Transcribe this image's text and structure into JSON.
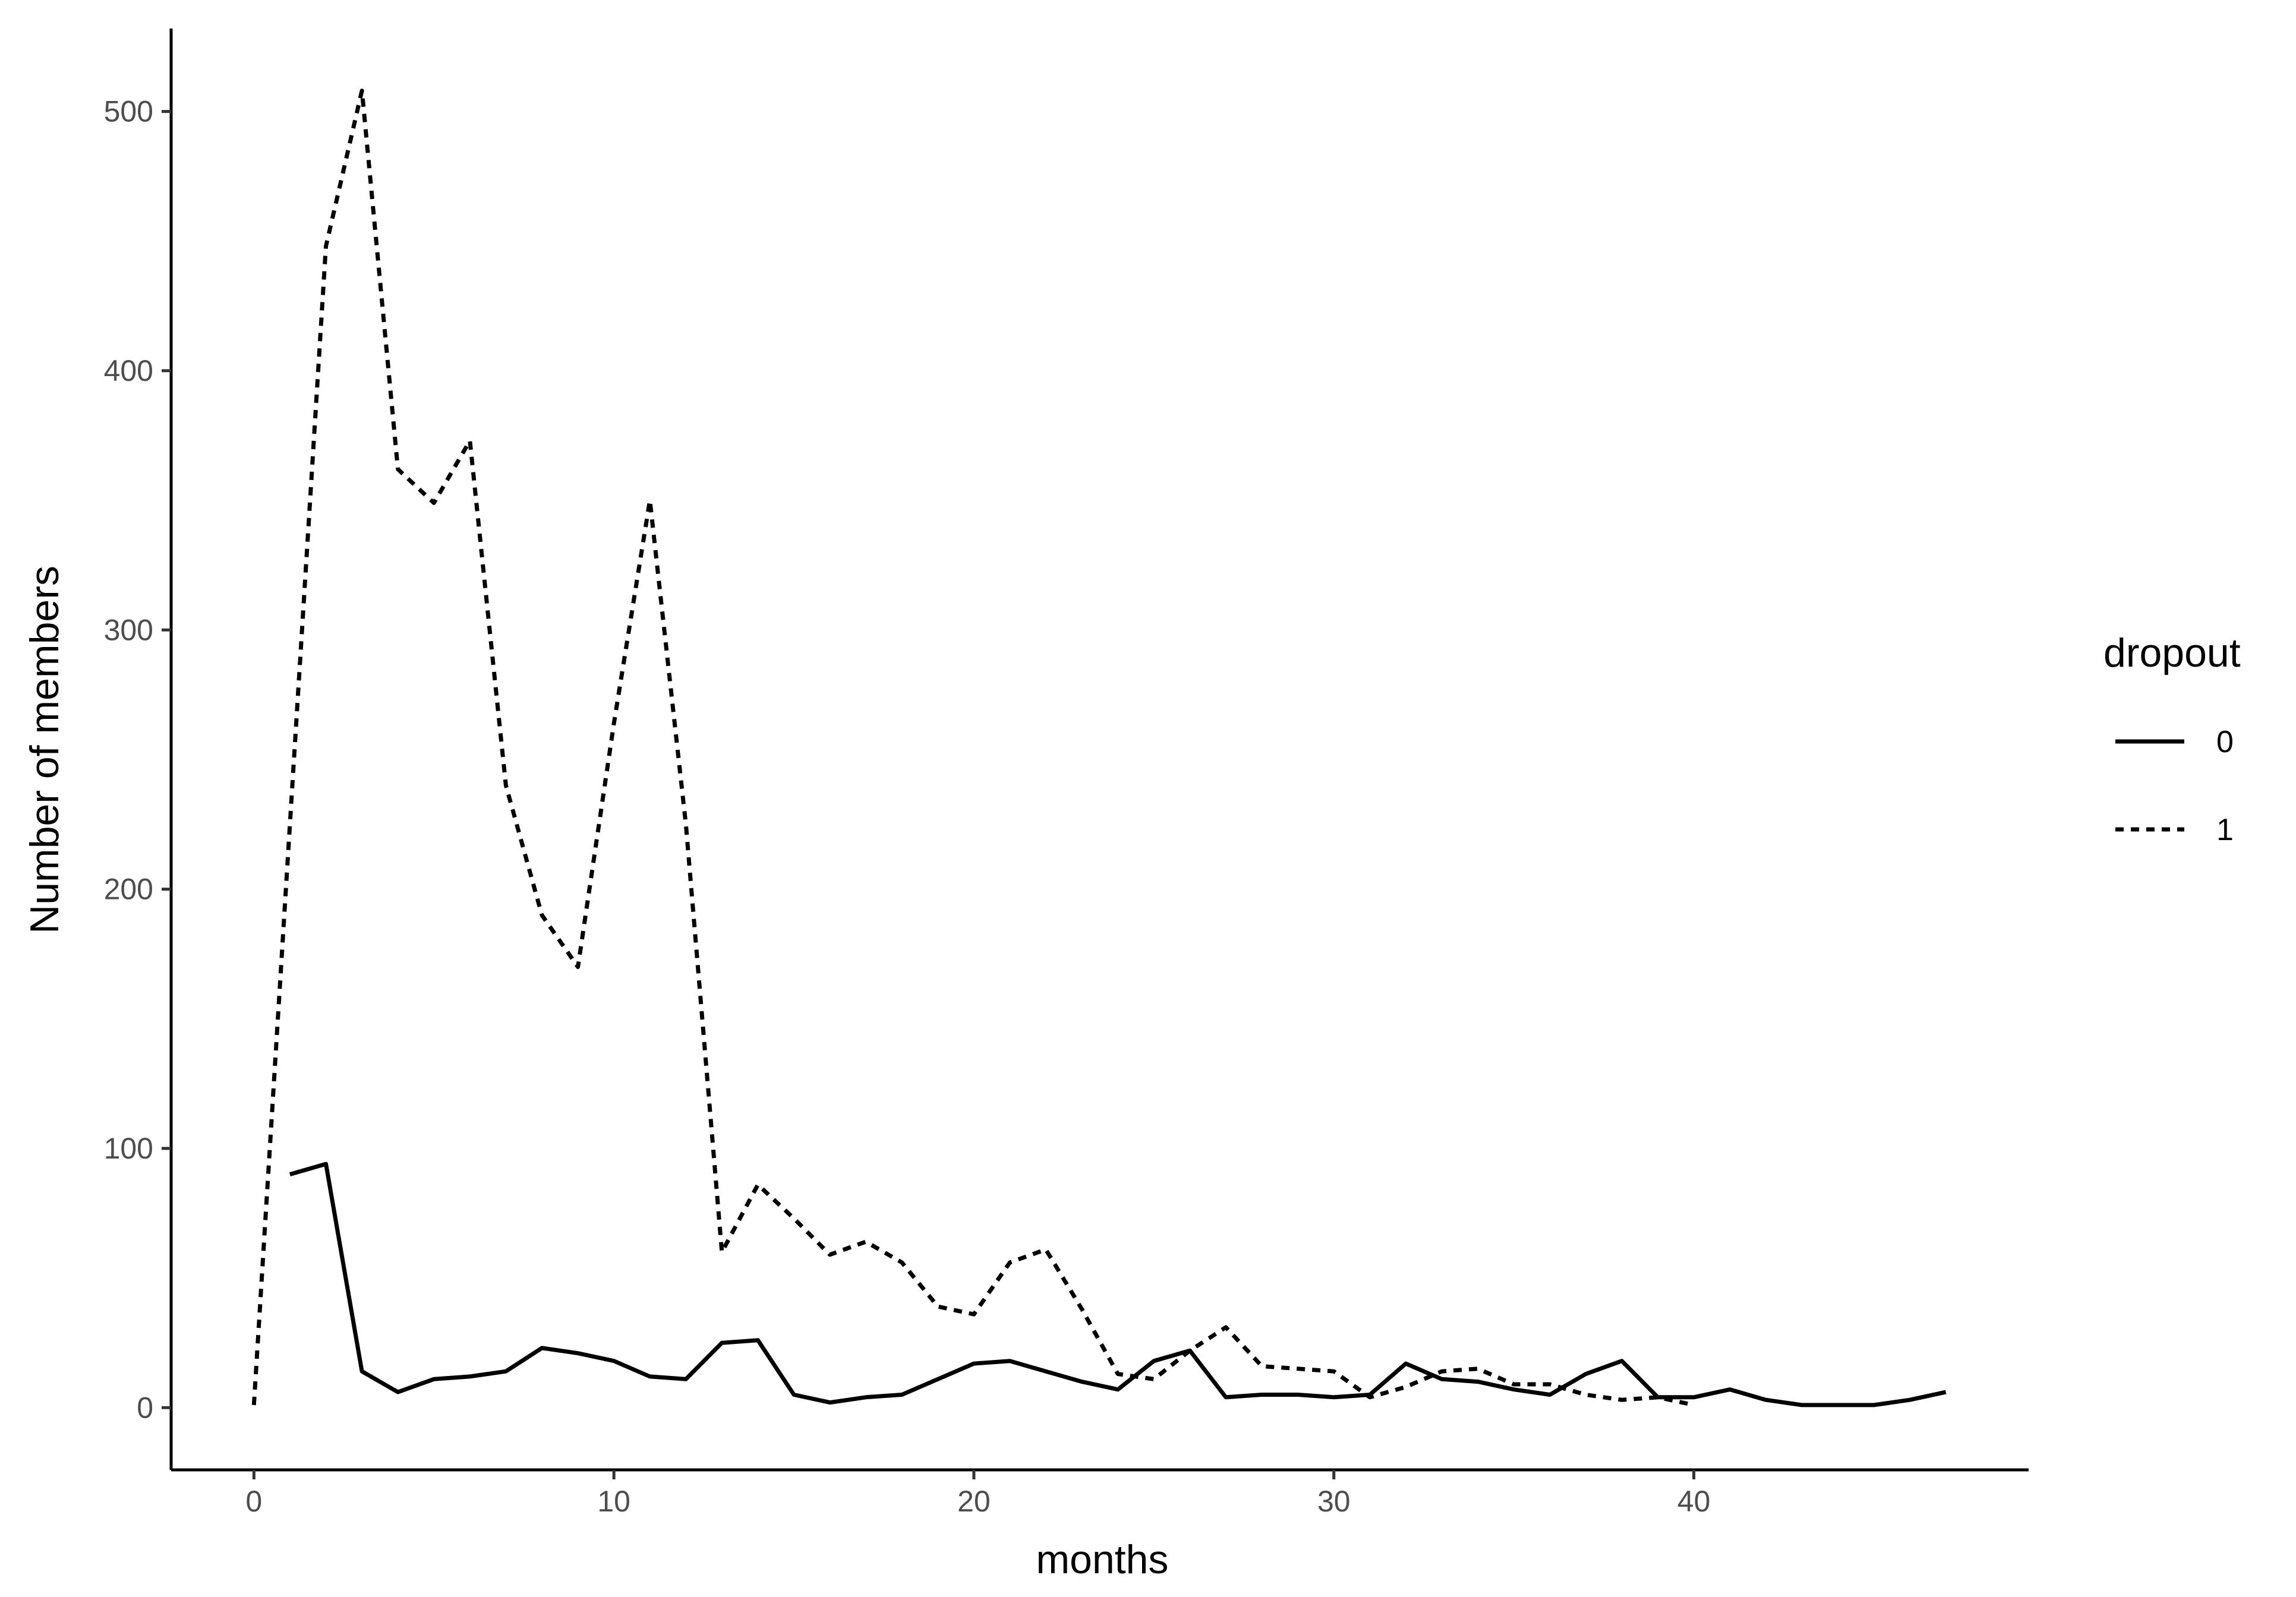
{
  "chart_data": {
    "type": "line",
    "title": "",
    "xlabel": "months",
    "ylabel": "Number of members",
    "xlim": [
      -2.3,
      49.3
    ],
    "ylim": [
      -24,
      532
    ],
    "x_ticks": [
      0,
      10,
      20,
      30,
      40
    ],
    "y_ticks": [
      0,
      100,
      200,
      300,
      400,
      500
    ],
    "grid": false,
    "legend": {
      "title": "dropout",
      "position": "right"
    },
    "series": [
      {
        "name": "0",
        "line_style": "solid",
        "color": "#000000",
        "x": [
          1,
          2,
          3,
          4,
          5,
          6,
          7,
          8,
          9,
          10,
          11,
          12,
          13,
          14,
          15,
          16,
          17,
          18,
          19,
          20,
          21,
          22,
          23,
          24,
          25,
          26,
          27,
          28,
          29,
          30,
          31,
          32,
          33,
          34,
          35,
          36,
          37,
          38,
          39,
          40,
          41,
          42,
          43,
          44,
          45,
          46,
          47
        ],
        "y": [
          90,
          94,
          14,
          6,
          11,
          12,
          14,
          23,
          21,
          18,
          12,
          11,
          25,
          26,
          5,
          2,
          4,
          5,
          11,
          17,
          18,
          14,
          10,
          7,
          18,
          22,
          4,
          5,
          5,
          4,
          5,
          17,
          11,
          10,
          7,
          5,
          13,
          18,
          4,
          4,
          7,
          3,
          1,
          1,
          1,
          3,
          6
        ]
      },
      {
        "name": "1",
        "line_style": "dashed",
        "color": "#000000",
        "x": [
          0,
          1,
          2,
          3,
          4,
          5,
          6,
          7,
          8,
          9,
          10,
          11,
          12,
          13,
          14,
          15,
          16,
          17,
          18,
          19,
          20,
          21,
          22,
          23,
          24,
          25,
          26,
          27,
          28,
          29,
          30,
          31,
          32,
          33,
          34,
          35,
          36,
          37,
          38,
          39,
          40
        ],
        "y": [
          1,
          225,
          448,
          508,
          362,
          349,
          373,
          240,
          190,
          170,
          264,
          350,
          225,
          60,
          86,
          73,
          59,
          64,
          56,
          39,
          36,
          56,
          61,
          38,
          13,
          11,
          22,
          31,
          16,
          15,
          14,
          4,
          8,
          14,
          15,
          9,
          9,
          5,
          3,
          4,
          1
        ]
      }
    ]
  }
}
